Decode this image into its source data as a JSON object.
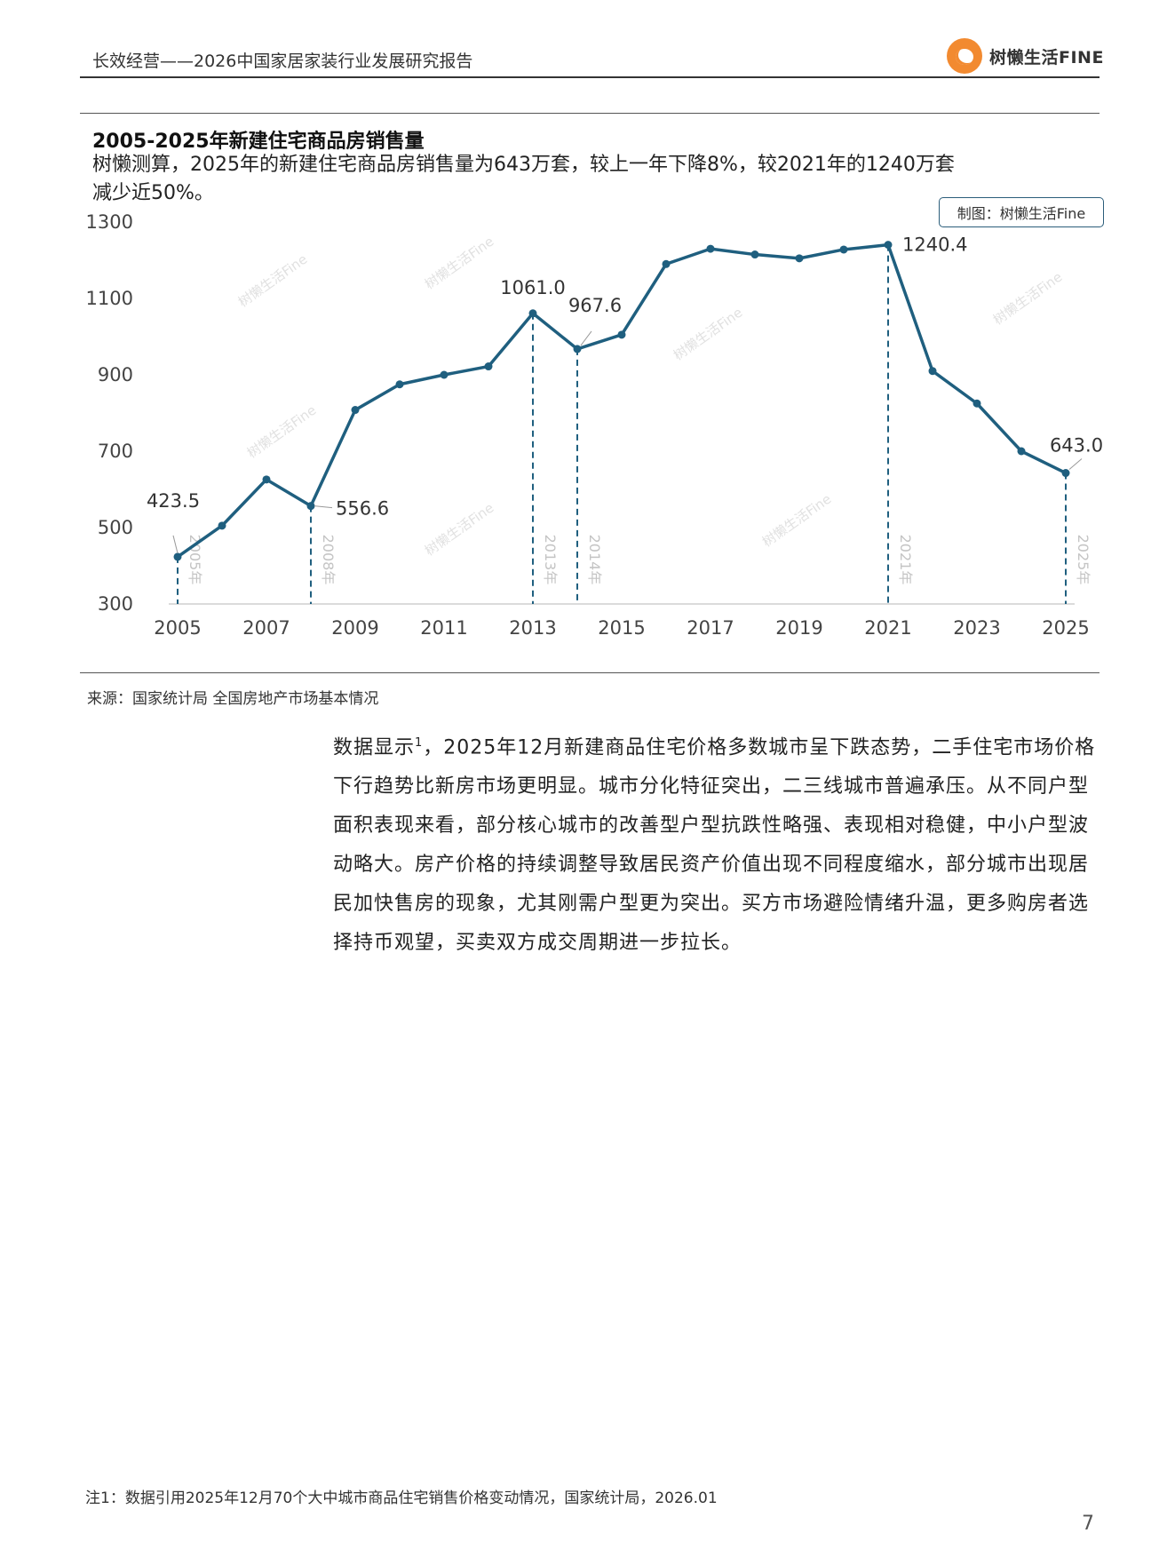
{
  "header": {
    "title": "长效经营——2026中国家居家装行业发展研究报告",
    "logo_text": "树懒生活FINE"
  },
  "figure": {
    "title": "2005-2025年新建住宅商品房销售量",
    "subtitle": "树懒测算，2025年的新建住宅商品房销售量为643万套，较上一年下降8%，较2021年的1240万套减少近50%。",
    "credit": "制图：树懒生活Fine",
    "source": "来源：国家统计局 全国房地产市场基本情况",
    "watermark": "树懒生活Fine"
  },
  "chart_data": {
    "type": "line",
    "title": "2005-2025年新建住宅商品房销售量",
    "xlabel": "",
    "ylabel": "",
    "x": [
      2005,
      2006,
      2007,
      2008,
      2009,
      2010,
      2011,
      2012,
      2013,
      2014,
      2015,
      2016,
      2017,
      2018,
      2019,
      2020,
      2021,
      2022,
      2023,
      2024,
      2025
    ],
    "values": [
      423.5,
      505,
      626,
      556.6,
      808,
      875,
      900,
      922,
      1061.0,
      967.6,
      1005,
      1190,
      1230,
      1215,
      1205,
      1228,
      1240.4,
      910,
      825,
      700,
      643.0
    ],
    "xticks": [
      "2005",
      "2007",
      "2009",
      "2011",
      "2013",
      "2015",
      "2017",
      "2019",
      "2021",
      "2023",
      "2025"
    ],
    "yticks": [
      "300",
      "500",
      "700",
      "900",
      "1100",
      "1300"
    ],
    "ylim": [
      300,
      1300
    ],
    "grid": false,
    "color": "#1f5f7f",
    "point_labels": [
      {
        "x": 2005,
        "text": "423.5"
      },
      {
        "x": 2008,
        "text": "556.6"
      },
      {
        "x": 2013,
        "text": "1061.0"
      },
      {
        "x": 2014,
        "text": "967.6"
      },
      {
        "x": 2021,
        "text": "1240.4"
      },
      {
        "x": 2025,
        "text": "643.0"
      }
    ],
    "markers": [
      {
        "x": 2005,
        "text": "2005年"
      },
      {
        "x": 2008,
        "text": "2008年"
      },
      {
        "x": 2013,
        "text": "2013年"
      },
      {
        "x": 2014,
        "text": "2014年"
      },
      {
        "x": 2021,
        "text": "2021年"
      },
      {
        "x": 2025,
        "text": "2025年"
      }
    ]
  },
  "body": {
    "para_start": "数据显示",
    "footnote_ref": "1",
    "para_rest": "，2025年12月新建商品住宅价格多数城市呈下跌态势，二手住宅市场价格下行趋势比新房市场更明显。城市分化特征突出，二三线城市普遍承压。从不同户型面积表现来看，部分核心城市的改善型户型抗跌性略强、表现相对稳健，中小户型波动略大。房产价格的持续调整导致居民资产价值出现不同程度缩水，部分城市出现居民加快售房的现象，尤其刚需户型更为突出。买方市场避险情绪升温，更多购房者选择持币观望，买卖双方成交周期进一步拉长。"
  },
  "footer": {
    "note": "注1：数据引用2025年12月70个大中城市商品住宅销售价格变动情况，国家统计局，2026.01",
    "page": "7"
  }
}
